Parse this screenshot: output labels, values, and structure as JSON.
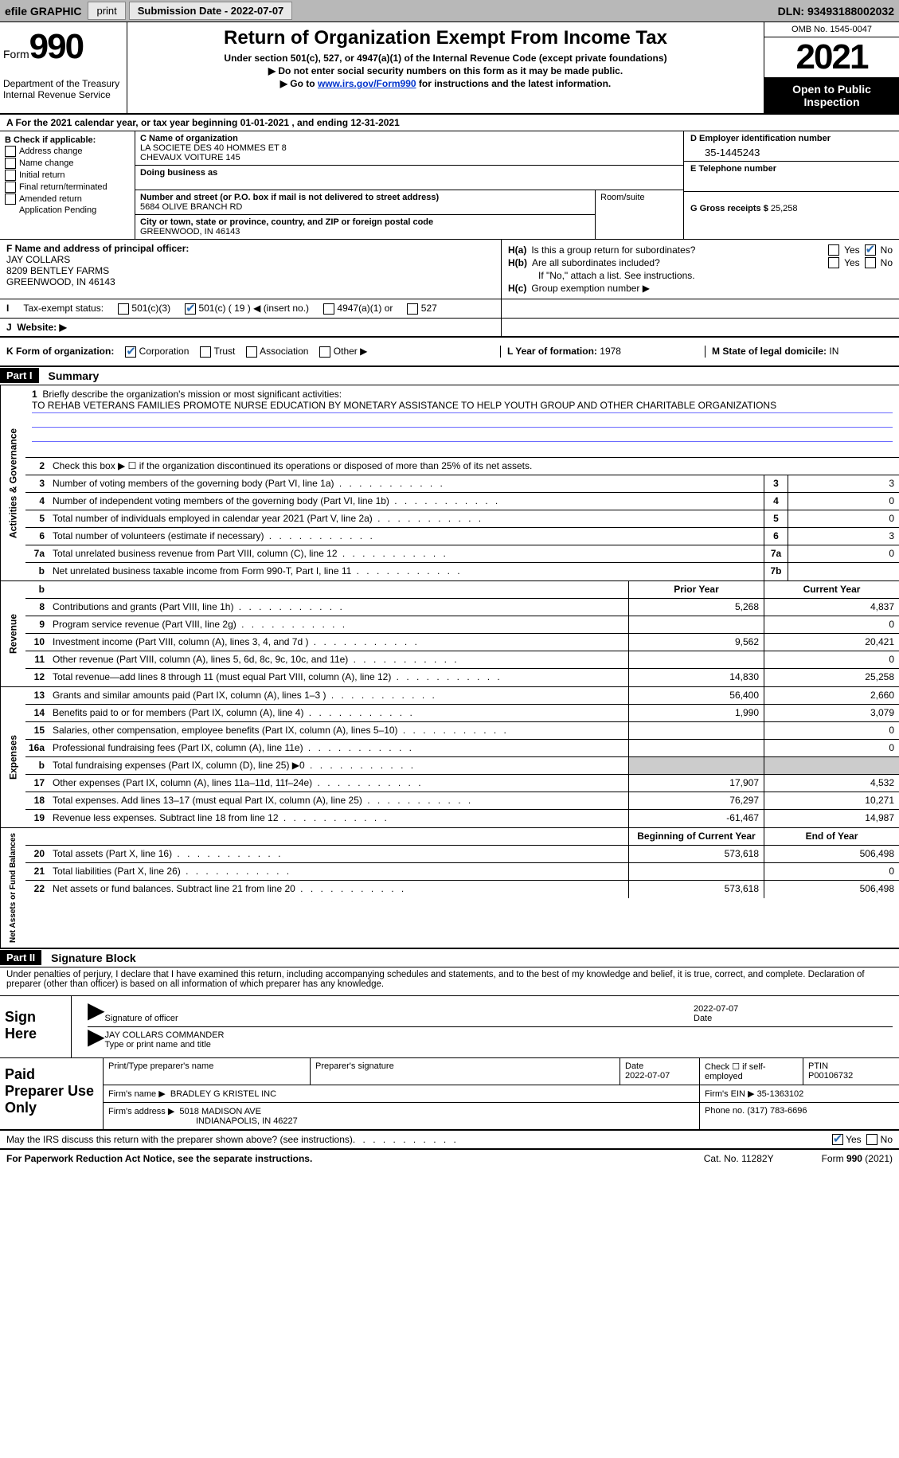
{
  "colors": {
    "topbar_bg": "#b8b8b8",
    "button_bg": "#e8e8e8",
    "black": "#000000",
    "white": "#ffffff",
    "link": "#0033cc",
    "check_blue": "#2a6db5",
    "shade": "#cccccc",
    "rule_blue": "#6a6aff"
  },
  "topbar": {
    "efile": "efile GRAPHIC",
    "print": "print",
    "sub_label": "Submission Date - 2022-07-07",
    "dln_label": "DLN: 93493188002032"
  },
  "header": {
    "form_word": "Form",
    "form_num": "990",
    "dept": "Department of the Treasury\nInternal Revenue Service",
    "title": "Return of Organization Exempt From Income Tax",
    "sub1": "Under section 501(c), 527, or 4947(a)(1) of the Internal Revenue Code (except private foundations)",
    "sub2": "▶ Do not enter social security numbers on this form as it may be made public.",
    "sub3_pre": "▶ Go to ",
    "sub3_link": "www.irs.gov/Form990",
    "sub3_post": " for instructions and the latest information.",
    "omb": "OMB No. 1545-0047",
    "year": "2021",
    "open": "Open to Public Inspection"
  },
  "row_a": "A For the 2021 calendar year, or tax year beginning 01-01-2021    , and ending 12-31-2021",
  "col_b": {
    "head": "B Check if applicable:",
    "items": [
      "Address change",
      "Name change",
      "Initial return",
      "Final return/terminated",
      "Amended return",
      "Application Pending"
    ]
  },
  "col_c": {
    "name_lbl": "C Name of organization",
    "name1": "LA SOCIETE DES 40 HOMMES ET 8",
    "name2": "CHEVAUX VOITURE 145",
    "dba_lbl": "Doing business as",
    "street_lbl": "Number and street (or P.O. box if mail is not delivered to street address)",
    "room_lbl": "Room/suite",
    "street": "5684 OLIVE BRANCH RD",
    "city_lbl": "City or town, state or province, country, and ZIP or foreign postal code",
    "city": "GREENWOOD, IN  46143"
  },
  "col_d": {
    "d_lbl": "D Employer identification number",
    "d_val": "35-1445243",
    "e_lbl": "E Telephone number",
    "g_lbl": "G Gross receipts $",
    "g_val": "25,258"
  },
  "sec_f": {
    "lbl": "F Name and address of principal officer:",
    "name": "JAY COLLARS",
    "addr1": "8209 BENTLEY FARMS",
    "addr2": "GREENWOOD, IN  46143"
  },
  "sec_h": {
    "ha_lbl": "H(a)",
    "ha_txt": "Is this a group return for subordinates?",
    "hb_lbl": "H(b)",
    "hb_txt": "Are all subordinates included?",
    "hb_note": "If \"No,\" attach a list. See instructions.",
    "hc_lbl": "H(c)",
    "hc_txt": "Group exemption number ▶",
    "yes": "Yes",
    "no": "No"
  },
  "row_i": {
    "lbl": "I",
    "txt": "Tax-exempt status:",
    "o1": "501(c)(3)",
    "o2": "501(c) ( 19 ) ◀ (insert no.)",
    "o3": "4947(a)(1) or",
    "o4": "527"
  },
  "row_j": {
    "lbl": "J",
    "txt": "Website: ▶"
  },
  "row_k": {
    "lbl": "K Form of organization:",
    "o1": "Corporation",
    "o2": "Trust",
    "o3": "Association",
    "o4": "Other ▶",
    "l_lbl": "L Year of formation:",
    "l_val": "1978",
    "m_lbl": "M State of legal domicile:",
    "m_val": "IN"
  },
  "part1": {
    "tag": "Part I",
    "title": "Summary",
    "l1_lbl": "1",
    "l1_txt": "Briefly describe the organization's mission or most significant activities:",
    "l1_val": "TO REHAB VETERANS FAMILIES PROMOTE NURSE EDUCATION BY MONETARY ASSISTANCE TO HELP YOUTH GROUP AND OTHER CHARITABLE ORGANIZATIONS",
    "l2": "Check this box ▶ ☐ if the organization discontinued its operations or disposed of more than 25% of its net assets.",
    "vt_ag": "Activities & Governance",
    "vt_rev": "Revenue",
    "vt_exp": "Expenses",
    "vt_na": "Net Assets or Fund Balances",
    "lines_ag": [
      {
        "n": "3",
        "t": "Number of voting members of the governing body (Part VI, line 1a)",
        "box": "3",
        "v": "3"
      },
      {
        "n": "4",
        "t": "Number of independent voting members of the governing body (Part VI, line 1b)",
        "box": "4",
        "v": "0"
      },
      {
        "n": "5",
        "t": "Total number of individuals employed in calendar year 2021 (Part V, line 2a)",
        "box": "5",
        "v": "0"
      },
      {
        "n": "6",
        "t": "Total number of volunteers (estimate if necessary)",
        "box": "6",
        "v": "3"
      },
      {
        "n": "7a",
        "t": "Total unrelated business revenue from Part VIII, column (C), line 12",
        "box": "7a",
        "v": "0"
      },
      {
        "n": "b",
        "t": "Net unrelated business taxable income from Form 990-T, Part I, line 11",
        "box": "7b",
        "v": ""
      }
    ],
    "hdr_prior": "Prior Year",
    "hdr_curr": "Current Year",
    "lines_rev": [
      {
        "n": "8",
        "t": "Contributions and grants (Part VIII, line 1h)",
        "p": "5,268",
        "c": "4,837"
      },
      {
        "n": "9",
        "t": "Program service revenue (Part VIII, line 2g)",
        "p": "",
        "c": "0"
      },
      {
        "n": "10",
        "t": "Investment income (Part VIII, column (A), lines 3, 4, and 7d )",
        "p": "9,562",
        "c": "20,421"
      },
      {
        "n": "11",
        "t": "Other revenue (Part VIII, column (A), lines 5, 6d, 8c, 9c, 10c, and 11e)",
        "p": "",
        "c": "0"
      },
      {
        "n": "12",
        "t": "Total revenue—add lines 8 through 11 (must equal Part VIII, column (A), line 12)",
        "p": "14,830",
        "c": "25,258"
      }
    ],
    "lines_exp": [
      {
        "n": "13",
        "t": "Grants and similar amounts paid (Part IX, column (A), lines 1–3 )",
        "p": "56,400",
        "c": "2,660"
      },
      {
        "n": "14",
        "t": "Benefits paid to or for members (Part IX, column (A), line 4)",
        "p": "1,990",
        "c": "3,079"
      },
      {
        "n": "15",
        "t": "Salaries, other compensation, employee benefits (Part IX, column (A), lines 5–10)",
        "p": "",
        "c": "0"
      },
      {
        "n": "16a",
        "t": "Professional fundraising fees (Part IX, column (A), line 11e)",
        "p": "",
        "c": "0"
      },
      {
        "n": "b",
        "t": "Total fundraising expenses (Part IX, column (D), line 25) ▶0",
        "p": "SHADE",
        "c": "SHADE"
      },
      {
        "n": "17",
        "t": "Other expenses (Part IX, column (A), lines 11a–11d, 11f–24e)",
        "p": "17,907",
        "c": "4,532"
      },
      {
        "n": "18",
        "t": "Total expenses. Add lines 13–17 (must equal Part IX, column (A), line 25)",
        "p": "76,297",
        "c": "10,271"
      },
      {
        "n": "19",
        "t": "Revenue less expenses. Subtract line 18 from line 12",
        "p": "-61,467",
        "c": "14,987"
      }
    ],
    "hdr_beg": "Beginning of Current Year",
    "hdr_end": "End of Year",
    "lines_na": [
      {
        "n": "20",
        "t": "Total assets (Part X, line 16)",
        "p": "573,618",
        "c": "506,498"
      },
      {
        "n": "21",
        "t": "Total liabilities (Part X, line 26)",
        "p": "",
        "c": "0"
      },
      {
        "n": "22",
        "t": "Net assets or fund balances. Subtract line 21 from line 20",
        "p": "573,618",
        "c": "506,498"
      }
    ]
  },
  "part2": {
    "tag": "Part II",
    "title": "Signature Block",
    "penalty": "Under penalties of perjury, I declare that I have examined this return, including accompanying schedules and statements, and to the best of my knowledge and belief, it is true, correct, and complete. Declaration of preparer (other than officer) is based on all information of which preparer has any knowledge.",
    "sign_here": "Sign Here",
    "sig_officer": "Signature of officer",
    "sig_date": "2022-07-07",
    "date_lbl": "Date",
    "name_title": "JAY COLLARS COMMANDER",
    "name_title_lbl": "Type or print name and title"
  },
  "paid": {
    "title": "Paid Preparer Use Only",
    "h1": "Print/Type preparer's name",
    "h2": "Preparer's signature",
    "h3": "Date",
    "h3v": "2022-07-07",
    "h4": "Check ☐ if self-employed",
    "h5": "PTIN",
    "h5v": "P00106732",
    "firm_lbl": "Firm's name     ▶",
    "firm": "BRADLEY G KRISTEL INC",
    "ein_lbl": "Firm's EIN ▶",
    "ein": "35-1363102",
    "addr_lbl": "Firm's address ▶",
    "addr1": "5018 MADISON AVE",
    "addr2": "INDIANAPOLIS, IN  46227",
    "phone_lbl": "Phone no.",
    "phone": "(317) 783-6696"
  },
  "discuss": {
    "txt": "May the IRS discuss this return with the preparer shown above? (see instructions)",
    "yes": "Yes",
    "no": "No"
  },
  "footer": {
    "pra": "For Paperwork Reduction Act Notice, see the separate instructions.",
    "cat": "Cat. No. 11282Y",
    "form": "Form 990 (2021)"
  }
}
